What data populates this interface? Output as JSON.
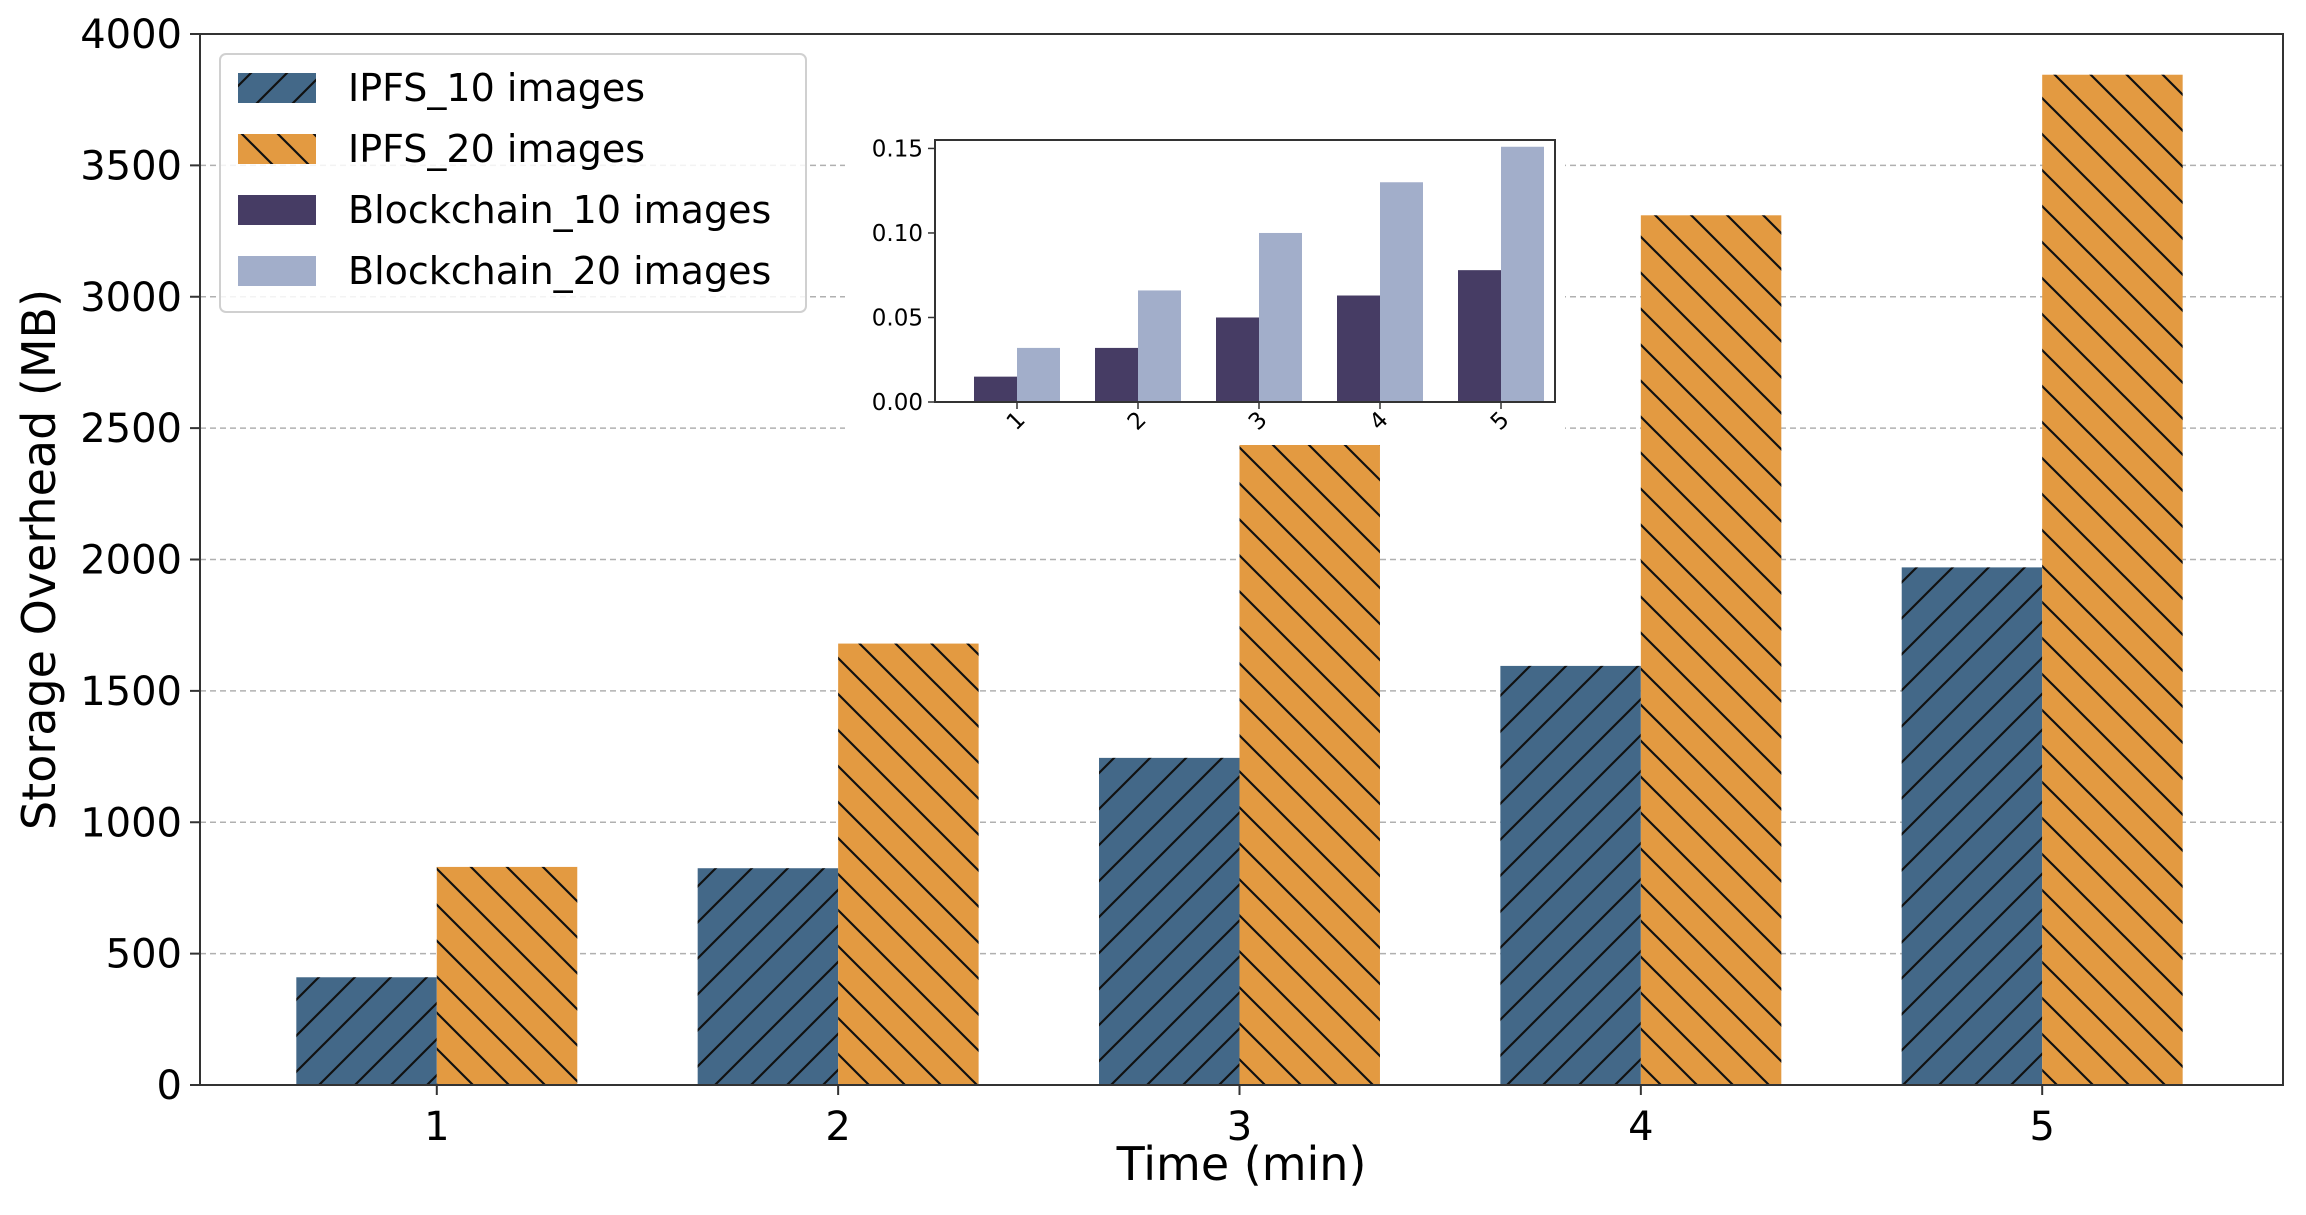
{
  "chart_data": [
    {
      "type": "bar",
      "role": "main",
      "title": "",
      "xlabel": "Time (min)",
      "ylabel": "Storage Overhead (MB)",
      "categories": [
        "1",
        "2",
        "3",
        "4",
        "5"
      ],
      "ylim": [
        0,
        4000
      ],
      "yticks": [
        "0",
        "500",
        "1000",
        "1500",
        "2000",
        "2500",
        "3000",
        "3500",
        "4000"
      ],
      "grid": "horizontal dashed",
      "legend_position": "top-left",
      "series": [
        {
          "name": "IPFS_10 images",
          "color": "#436888",
          "hatch": "forward-diagonal",
          "values": [
            410,
            825,
            1245,
            1595,
            1970
          ]
        },
        {
          "name": "IPFS_20 images",
          "color": "#E39A41",
          "hatch": "back-diagonal",
          "values": [
            830,
            1680,
            2540,
            3310,
            3845
          ]
        }
      ],
      "legend": [
        {
          "label": "IPFS_10 images",
          "color": "#436888",
          "hatch": "forward-diagonal"
        },
        {
          "label": "IPFS_20 images",
          "color": "#E39A41",
          "hatch": "back-diagonal"
        },
        {
          "label": "Blockchain_10 images",
          "color": "#463C64",
          "hatch": "none"
        },
        {
          "label": "Blockchain_20 images",
          "color": "#A2AECA",
          "hatch": "none"
        }
      ]
    },
    {
      "type": "bar",
      "role": "inset",
      "title": "",
      "xlabel": "",
      "ylabel": "",
      "categories": [
        "1",
        "2",
        "3",
        "4",
        "5"
      ],
      "ylim": [
        0,
        0.155
      ],
      "yticks": [
        "0.00",
        "0.05",
        "0.10",
        "0.15"
      ],
      "grid": "none",
      "series": [
        {
          "name": "Blockchain_10 images",
          "color": "#463C64",
          "values": [
            0.015,
            0.032,
            0.05,
            0.063,
            0.078
          ]
        },
        {
          "name": "Blockchain_20 images",
          "color": "#A2AECA",
          "values": [
            0.032,
            0.066,
            0.1,
            0.13,
            0.151
          ]
        }
      ]
    }
  ]
}
